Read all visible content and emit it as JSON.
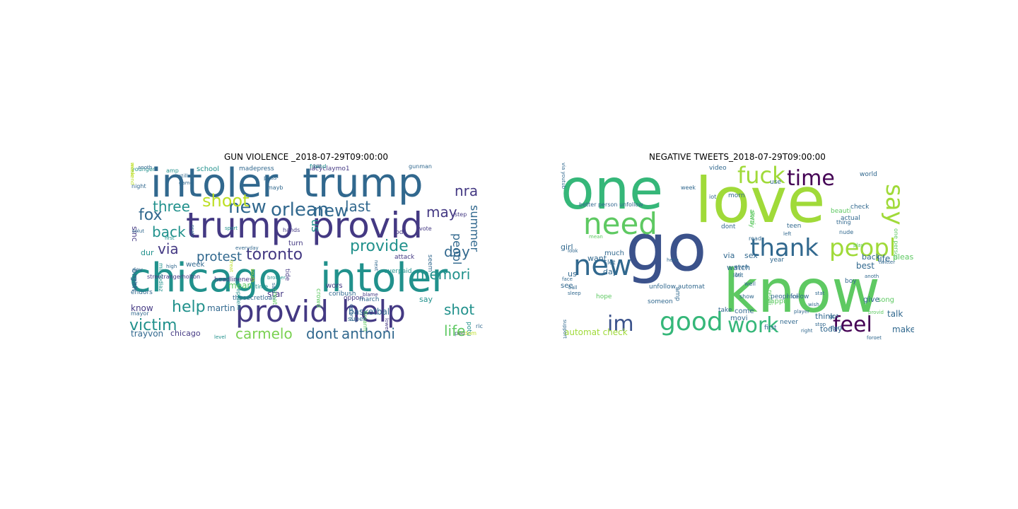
{
  "panels": [
    {
      "title": "GUN VIOLENCE _2018-07-29T09:00:00",
      "words": [
        {
          "t": "intoler",
          "c": "#31688e",
          "s": 56
        },
        {
          "t": "trump",
          "c": "#31688e",
          "s": 56
        },
        {
          "t": "trump",
          "c": "#443983",
          "s": 50
        },
        {
          "t": "provid",
          "c": "#443983",
          "s": 50
        },
        {
          "t": "chicago",
          "c": "#21918c",
          "s": 56
        },
        {
          "t": "intoler",
          "c": "#21918c",
          "s": 56
        },
        {
          "t": "provid",
          "c": "#443983",
          "s": 42
        },
        {
          "t": "help",
          "c": "#443983",
          "s": 42
        },
        {
          "t": "new",
          "c": "#31688e",
          "s": 26
        },
        {
          "t": "orlean",
          "c": "#31688e",
          "s": 26
        },
        {
          "t": "shoot",
          "c": "#bddf26",
          "s": 24
        },
        {
          "t": "three",
          "c": "#21918c",
          "s": 20
        },
        {
          "t": "fox",
          "c": "#31688e",
          "s": 22
        },
        {
          "t": "back",
          "c": "#21918c",
          "s": 20
        },
        {
          "t": "via",
          "c": "#443983",
          "s": 20
        },
        {
          "t": "new",
          "c": "#31688e",
          "s": 24
        },
        {
          "t": "last",
          "c": "#31688e",
          "s": 20
        },
        {
          "t": "provide",
          "c": "#21918c",
          "s": 22
        },
        {
          "t": "may",
          "c": "#443983",
          "s": 20
        },
        {
          "t": "nra",
          "c": "#443983",
          "s": 20
        },
        {
          "t": "day",
          "c": "#31688e",
          "s": 20
        },
        {
          "t": "toronto",
          "c": "#443983",
          "s": 22
        },
        {
          "t": "protest",
          "c": "#31688e",
          "s": 18
        },
        {
          "t": "memori",
          "c": "#21918c",
          "s": 20
        },
        {
          "t": "help",
          "c": "#21918c",
          "s": 22
        },
        {
          "t": "victim",
          "c": "#21918c",
          "s": 22
        },
        {
          "t": "carmelo",
          "c": "#7ad151",
          "s": 20
        },
        {
          "t": "dont",
          "c": "#31688e",
          "s": 20
        },
        {
          "t": "anthoni",
          "c": "#31688e",
          "s": 20
        },
        {
          "t": "shot",
          "c": "#21918c",
          "s": 20
        },
        {
          "t": "life",
          "c": "#5ec962",
          "s": 20
        },
        {
          "t": "basketbal",
          "c": "#31688e",
          "s": 12
        },
        {
          "t": "martin",
          "c": "#31688e",
          "s": 12
        },
        {
          "t": "star",
          "c": "#443983",
          "s": 12
        },
        {
          "t": "mean",
          "c": "#5ec962",
          "s": 12
        },
        {
          "t": "trayvon",
          "c": "#31688e",
          "s": 12
        },
        {
          "t": "chicago",
          "c": "#443983",
          "s": 11
        },
        {
          "t": "know",
          "c": "#443983",
          "s": 12
        },
        {
          "t": "organ",
          "c": "#31688e",
          "s": 11
        },
        {
          "t": "sinc",
          "c": "#443983",
          "s": 11
        },
        {
          "t": "peopl",
          "c": "#31688e",
          "s": 16
        },
        {
          "t": "summer",
          "c": "#31688e",
          "s": 16
        },
        {
          "t": "us",
          "c": "#21918c",
          "s": 16
        },
        {
          "t": "week",
          "c": "#31688e",
          "s": 10
        },
        {
          "t": "school",
          "c": "#21918c",
          "s": 10
        },
        {
          "t": "madepress",
          "c": "#31688e",
          "s": 9
        },
        {
          "t": "lacyclaymo1",
          "c": "#443983",
          "s": 9
        },
        {
          "t": "gunman",
          "c": "#31688e",
          "s": 8
        },
        {
          "t": "kill",
          "c": "#443983",
          "s": 8
        },
        {
          "t": "wors",
          "c": "#443983",
          "s": 10
        },
        {
          "t": "turn",
          "c": "#443983",
          "s": 10
        },
        {
          "t": "coribush",
          "c": "#31688e",
          "s": 9
        },
        {
          "t": "oppon",
          "c": "#443983",
          "s": 9
        },
        {
          "t": "march",
          "c": "#31688e",
          "s": 9
        },
        {
          "t": "say",
          "c": "#21918c",
          "s": 11
        },
        {
          "t": "potu",
          "c": "#21918c",
          "s": 9
        },
        {
          "t": "dur",
          "c": "#21918c",
          "s": 11
        },
        {
          "t": "thesecretloall",
          "c": "#31688e",
          "s": 9
        },
        {
          "t": "endors",
          "c": "#31688e",
          "s": 9
        },
        {
          "t": "mayor",
          "c": "#31688e",
          "s": 8
        },
        {
          "t": "amp",
          "c": "#21918c",
          "s": 8
        },
        {
          "t": "younger",
          "c": "#21918c",
          "s": 8
        },
        {
          "t": "night",
          "c": "#31688e",
          "s": 8
        },
        {
          "t": "pd",
          "c": "#443983",
          "s": 9
        },
        {
          "t": "overpaid",
          "c": "#21918c",
          "s": 9
        },
        {
          "t": "attack",
          "c": "#443983",
          "s": 9
        },
        {
          "t": "crowd",
          "c": "#5ec962",
          "s": 9
        },
        {
          "t": "seem",
          "c": "#31688e",
          "s": 9
        },
        {
          "t": "firearm",
          "c": "#5ec962",
          "s": 8
        },
        {
          "t": "super",
          "c": "#31688e",
          "s": 9
        },
        {
          "t": "time",
          "c": "#21918c",
          "s": 8
        },
        {
          "t": "tide",
          "c": "#443983",
          "s": 9
        },
        {
          "t": "headlinenew",
          "c": "#443983",
          "s": 9
        },
        {
          "t": "streetrangerholton",
          "c": "#443983",
          "s": 8
        },
        {
          "t": "milviodiaz",
          "c": "#21918c",
          "s": 8
        },
        {
          "t": "epidem",
          "c": "#21918c",
          "s": 8
        },
        {
          "t": "creat",
          "c": "#5ec962",
          "s": 9
        },
        {
          "t": "step",
          "c": "#443983",
          "s": 8
        },
        {
          "t": "vote",
          "c": "#443983",
          "s": 8
        },
        {
          "t": "pass",
          "c": "#31688e",
          "s": 8
        },
        {
          "t": "mayb",
          "c": "#31688e",
          "s": 8
        },
        {
          "t": "friend",
          "c": "#21918c",
          "s": 8
        },
        {
          "t": "rich",
          "c": "#31688e",
          "s": 8
        },
        {
          "t": "random",
          "c": "#bddf26",
          "s": 8
        },
        {
          "t": "peo",
          "c": "#31688e",
          "s": 8
        },
        {
          "t": "level",
          "c": "#21918c",
          "s": 7
        },
        {
          "t": "brother",
          "c": "#21918c",
          "s": 7
        },
        {
          "t": "high",
          "c": "#31688e",
          "s": 7
        },
        {
          "t": "sport",
          "c": "#21918c",
          "s": 7
        },
        {
          "t": "game",
          "c": "#31688e",
          "s": 7
        },
        {
          "t": "anoth",
          "c": "#31688e",
          "s": 7
        },
        {
          "t": "dev",
          "c": "#31688e",
          "s": 8
        },
        {
          "t": "celebr",
          "c": "#31688e",
          "s": 7
        },
        {
          "t": "solut",
          "c": "#31688e",
          "s": 7
        },
        {
          "t": "first",
          "c": "#21918c",
          "s": 7
        },
        {
          "t": "still",
          "c": "#31688e",
          "s": 7
        },
        {
          "t": "defend",
          "c": "#31688e",
          "s": 7
        },
        {
          "t": "blame",
          "c": "#443983",
          "s": 7
        },
        {
          "t": "next",
          "c": "#31688e",
          "s": 7
        },
        {
          "t": "hands",
          "c": "#443983",
          "s": 8
        },
        {
          "t": "south",
          "c": "#bddf26",
          "s": 7
        },
        {
          "t": "treat",
          "c": "#bddf26",
          "s": 7
        },
        {
          "t": "everyday",
          "c": "#31688e",
          "s": 7
        },
        {
          "t": "nratv",
          "c": "#31688e",
          "s": 7
        },
        {
          "t": "said",
          "c": "#31688e",
          "s": 7
        },
        {
          "t": "lower",
          "c": "#443983",
          "s": 7
        },
        {
          "t": "weekend",
          "c": "#bddf26",
          "s": 7
        },
        {
          "t": "music",
          "c": "#bddf26",
          "s": 7
        }
      ]
    },
    {
      "title": "NEGATIVE TWEETS_2018-07-29T09:00:00",
      "words": [
        {
          "t": "one",
          "c": "#35b779",
          "s": 78
        },
        {
          "t": "love",
          "c": "#a0da39",
          "s": 88
        },
        {
          "t": "go",
          "c": "#3b528b",
          "s": 92
        },
        {
          "t": "know",
          "c": "#5ec962",
          "s": 84
        },
        {
          "t": "new",
          "c": "#31688e",
          "s": 40
        },
        {
          "t": "need",
          "c": "#5ec962",
          "s": 42
        },
        {
          "t": "fuck",
          "c": "#a0da39",
          "s": 32
        },
        {
          "t": "time",
          "c": "#440154",
          "s": 30
        },
        {
          "t": "say",
          "c": "#a0da39",
          "s": 34
        },
        {
          "t": "thank",
          "c": "#31688e",
          "s": 34
        },
        {
          "t": "peopl",
          "c": "#a0da39",
          "s": 34
        },
        {
          "t": "good",
          "c": "#35b779",
          "s": 36
        },
        {
          "t": "im",
          "c": "#3b528b",
          "s": 30
        },
        {
          "t": "work",
          "c": "#35b779",
          "s": 30
        },
        {
          "t": "feel",
          "c": "#440154",
          "s": 30
        },
        {
          "t": "make",
          "c": "#31688e",
          "s": 12
        },
        {
          "t": "talk",
          "c": "#31688e",
          "s": 12
        },
        {
          "t": "song",
          "c": "#5ec962",
          "s": 10
        },
        {
          "t": "best",
          "c": "#31688e",
          "s": 12
        },
        {
          "t": "life",
          "c": "#31688e",
          "s": 12
        },
        {
          "t": "back",
          "c": "#31688e",
          "s": 11
        },
        {
          "t": "pleas",
          "c": "#5ec962",
          "s": 11
        },
        {
          "t": "give",
          "c": "#31688e",
          "s": 11
        },
        {
          "t": "think",
          "c": "#31688e",
          "s": 11
        },
        {
          "t": "today",
          "c": "#31688e",
          "s": 11
        },
        {
          "t": "automat check",
          "c": "#a0da39",
          "s": 12
        },
        {
          "t": "want",
          "c": "#31688e",
          "s": 11
        },
        {
          "t": "much",
          "c": "#31688e",
          "s": 10
        },
        {
          "t": "watch",
          "c": "#31688e",
          "s": 11
        },
        {
          "t": "via",
          "c": "#31688e",
          "s": 11
        },
        {
          "t": "sex",
          "c": "#31688e",
          "s": 11
        },
        {
          "t": "girl",
          "c": "#31688e",
          "s": 11
        },
        {
          "t": "us",
          "c": "#31688e",
          "s": 11
        },
        {
          "t": "day",
          "c": "#31688e",
          "s": 11
        },
        {
          "t": "let",
          "c": "#31688e",
          "s": 9
        },
        {
          "t": "see",
          "c": "#31688e",
          "s": 10
        },
        {
          "t": "hope",
          "c": "#5ec962",
          "s": 9
        },
        {
          "t": "come",
          "c": "#31688e",
          "s": 10
        },
        {
          "t": "movi",
          "c": "#31688e",
          "s": 10
        },
        {
          "t": "happi",
          "c": "#5ec962",
          "s": 10
        },
        {
          "t": "peopl follow",
          "c": "#31688e",
          "s": 9
        },
        {
          "t": "take",
          "c": "#31688e",
          "s": 9
        },
        {
          "t": "someon",
          "c": "#31688e",
          "s": 9
        },
        {
          "t": "unfollow automat",
          "c": "#31688e",
          "s": 9
        },
        {
          "t": "better person unfollow",
          "c": "#31688e",
          "s": 8
        },
        {
          "t": "year",
          "c": "#31688e",
          "s": 9
        },
        {
          "t": "boy",
          "c": "#31688e",
          "s": 9
        },
        {
          "t": "morn",
          "c": "#31688e",
          "s": 9
        },
        {
          "t": "teen",
          "c": "#31688e",
          "s": 9
        },
        {
          "t": "video",
          "c": "#31688e",
          "s": 9
        },
        {
          "t": "use",
          "c": "#31688e",
          "s": 9
        },
        {
          "t": "dont",
          "c": "#31688e",
          "s": 9
        },
        {
          "t": "alway",
          "c": "#5ec962",
          "s": 9
        },
        {
          "t": "sorri",
          "c": "#5ec962",
          "s": 9
        },
        {
          "t": "beauti",
          "c": "#5ec962",
          "s": 9
        },
        {
          "t": "actual",
          "c": "#31688e",
          "s": 9
        },
        {
          "t": "check",
          "c": "#31688e",
          "s": 9
        },
        {
          "t": "world",
          "c": "#31688e",
          "s": 9
        },
        {
          "t": "thing",
          "c": "#31688e",
          "s": 8
        },
        {
          "t": "nude",
          "c": "#31688e",
          "s": 8
        },
        {
          "t": "read",
          "c": "#31688e",
          "s": 8
        },
        {
          "t": "first",
          "c": "#31688e",
          "s": 9
        },
        {
          "t": "never",
          "c": "#31688e",
          "s": 9
        },
        {
          "t": "start",
          "c": "#31688e",
          "s": 8
        },
        {
          "t": "stop",
          "c": "#31688e",
          "s": 7
        },
        {
          "t": "realli",
          "c": "#5ec962",
          "s": 9
        },
        {
          "t": "lost",
          "c": "#31688e",
          "s": 8
        },
        {
          "t": "even",
          "c": "#31688e",
          "s": 8
        },
        {
          "t": "tri",
          "c": "#31688e",
          "s": 8
        },
        {
          "t": "week",
          "c": "#31688e",
          "s": 8
        },
        {
          "t": "iot",
          "c": "#31688e",
          "s": 8
        },
        {
          "t": "got",
          "c": "#31688e",
          "s": 8
        },
        {
          "t": "nice",
          "c": "#31688e",
          "s": 8
        },
        {
          "t": "one person",
          "c": "#5ec962",
          "s": 8
        },
        {
          "t": "amp",
          "c": "#31688e",
          "s": 9
        },
        {
          "t": "well",
          "c": "#31688e",
          "s": 8
        },
        {
          "t": "show",
          "c": "#31688e",
          "s": 8
        },
        {
          "t": "hello",
          "c": "#31688e",
          "s": 7
        },
        {
          "t": "right",
          "c": "#31688e",
          "s": 7
        },
        {
          "t": "player",
          "c": "#31688e",
          "s": 7
        },
        {
          "t": "anoth",
          "c": "#31688e",
          "s": 7
        },
        {
          "t": "mean",
          "c": "#5ec962",
          "s": 7
        },
        {
          "t": "look",
          "c": "#31688e",
          "s": 7
        },
        {
          "t": "face",
          "c": "#31688e",
          "s": 7
        },
        {
          "t": "ball",
          "c": "#31688e",
          "s": 7
        },
        {
          "t": "twitter",
          "c": "#31688e",
          "s": 7
        },
        {
          "t": "play",
          "c": "#5ec962",
          "s": 7
        },
        {
          "t": "left",
          "c": "#31688e",
          "s": 7
        },
        {
          "t": "forget",
          "c": "#31688e",
          "s": 7
        },
        {
          "t": "provid",
          "c": "#5ec962",
          "s": 7
        },
        {
          "t": "stat",
          "c": "#31688e",
          "s": 7
        },
        {
          "t": "wish",
          "c": "#31688e",
          "s": 7
        },
        {
          "t": "sleep",
          "c": "#31688e",
          "s": 7
        },
        {
          "t": "support",
          "c": "#31688e",
          "s": 7
        },
        {
          "t": "via youtub",
          "c": "#31688e",
          "s": 7
        }
      ]
    }
  ]
}
